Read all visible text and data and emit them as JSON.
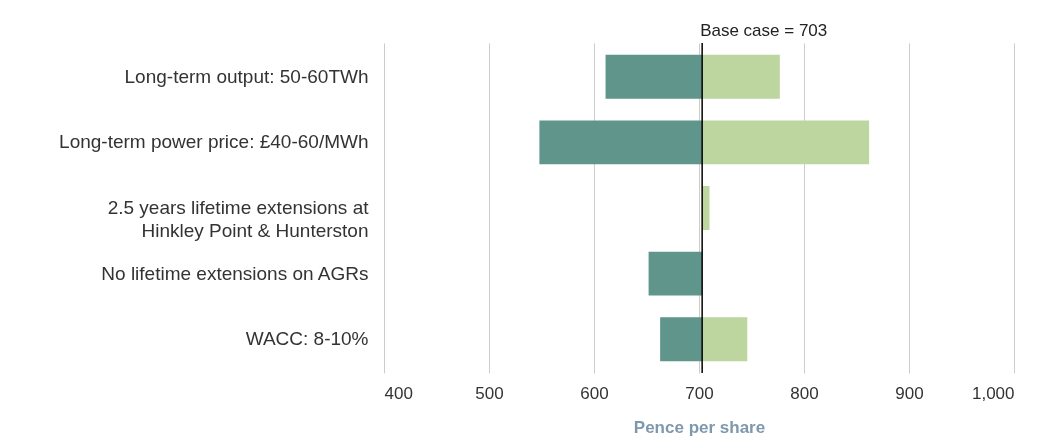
{
  "chart_data": {
    "type": "bar",
    "orientation": "horizontal",
    "categories": [
      "Long-term output: 50-60TWh",
      "Long-term power price: £40-60/MWh",
      "2.5 years lifetime extensions at Hinkley Point & Hunterston",
      "No lifetime extensions on AGRs",
      "WACC: 8-10%"
    ],
    "series": [
      {
        "color": "#5f958b",
        "base": [
          703,
          703,
          null,
          703,
          703
        ],
        "values": [
          -92,
          -155,
          null,
          -51,
          -40
        ]
      },
      {
        "color": "#bdd59f",
        "base": [
          703,
          703,
          703,
          null,
          703
        ],
        "values": [
          74,
          159,
          7,
          null,
          43
        ]
      }
    ],
    "xlabel": "Pence per share",
    "xlim": [
      400,
      1000
    ],
    "xticks": [
      400,
      500,
      600,
      700,
      800,
      900,
      {
        "value": 1000,
        "label": "1,000"
      }
    ],
    "ref_lines": [
      {
        "axis": "x",
        "value": 703,
        "label": "Base case = 703",
        "color": "#000000"
      }
    ],
    "grid": "x",
    "legend": false
  }
}
